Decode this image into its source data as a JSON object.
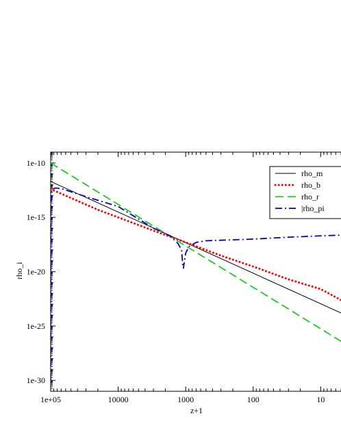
{
  "chart_data": {
    "type": "line",
    "title": "",
    "xlabel": "z+1",
    "ylabel": "rho_i",
    "x_scale": "log",
    "y_scale": "log",
    "x_reversed": true,
    "xlim": [
      100000,
      5
    ],
    "ylim": [
      1e-31,
      1e-09
    ],
    "x_tick_labels": [
      "1e+05",
      "10000",
      "1000",
      "100",
      "10"
    ],
    "y_tick_labels": [
      "1e-10",
      "1e-15",
      "1e-20",
      "1e-25",
      "1e-30"
    ],
    "grid": false,
    "legend_position": "top-right",
    "series": [
      {
        "name": "rho_m",
        "color": "#000000",
        "style": "solid",
        "points": [
          [
            100000,
            2e-12
          ],
          [
            5,
            1.6e-24
          ]
        ]
      },
      {
        "name": "rho_b",
        "color": "#ff0000",
        "style": "dotted",
        "points": [
          [
            100000,
            4e-13
          ],
          [
            20000,
            5e-15
          ],
          [
            3000,
            6e-17
          ],
          [
            1000,
            5e-18
          ],
          [
            300,
            3e-19
          ],
          [
            100,
            3e-20
          ],
          [
            30,
            2e-21
          ],
          [
            10,
            2.5e-22
          ],
          [
            5,
            2.5e-23
          ]
        ]
      },
      {
        "name": "rho_r",
        "color": "#00cc00",
        "style": "dashed",
        "points": [
          [
            100000,
            1e-10
          ],
          [
            5,
            4e-27
          ]
        ]
      },
      {
        "name": "|rho_pi",
        "color": "#0000cc",
        "style": "dashdot",
        "points": [
          [
            100000,
            1e-30
          ],
          [
            99000,
            1e-14
          ],
          [
            97000,
            2e-13
          ],
          [
            94000,
            4e-13
          ],
          [
            85000,
            5e-13
          ],
          [
            70000,
            4.5e-13
          ],
          [
            30000,
            8e-14
          ],
          [
            10000,
            1e-14
          ],
          [
            3000,
            1e-16
          ],
          [
            1700,
            2e-17
          ],
          [
            1300,
            4e-18
          ],
          [
            1150,
            1e-18
          ],
          [
            1100,
            3e-20
          ],
          [
            1080,
            2e-20
          ],
          [
            1050,
            8e-20
          ],
          [
            1000,
            5e-19
          ],
          [
            900,
            2e-18
          ],
          [
            700,
            5e-18
          ],
          [
            500,
            7e-18
          ],
          [
            100,
            1e-17
          ],
          [
            30,
            1.5e-17
          ],
          [
            10,
            2e-17
          ],
          [
            5,
            2.3e-17
          ]
        ]
      }
    ]
  }
}
